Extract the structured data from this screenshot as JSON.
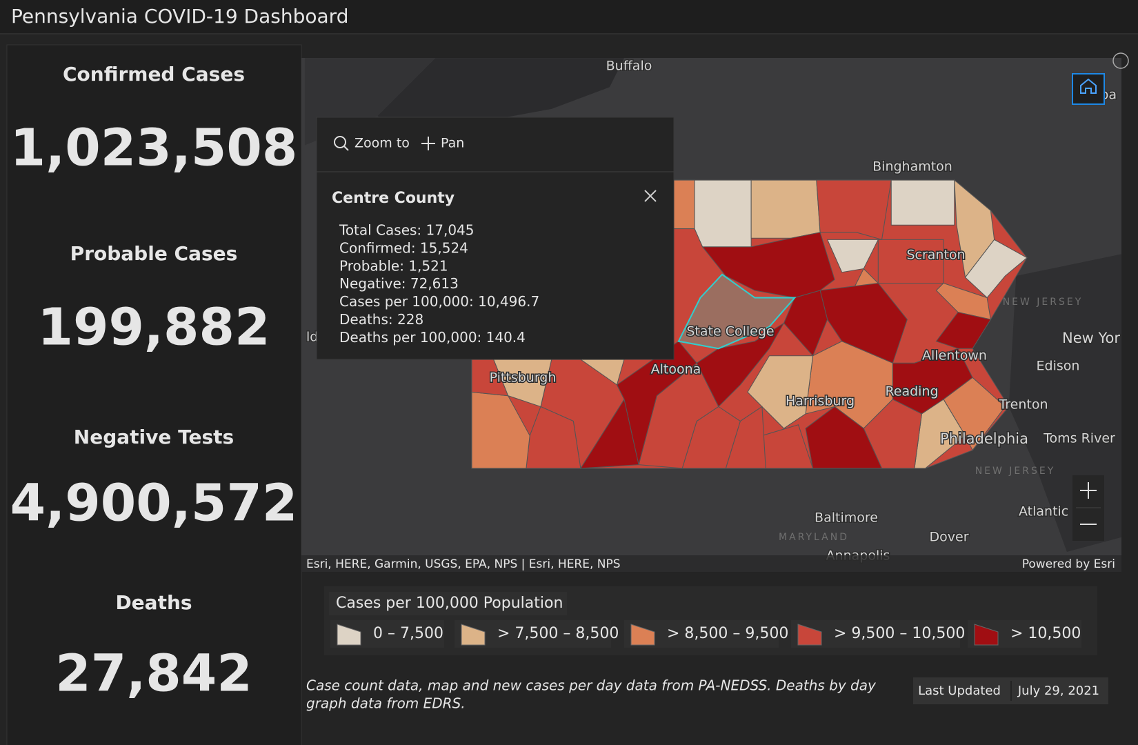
{
  "header": {
    "title": "Pennsylvania COVID-19 Dashboard"
  },
  "stats": [
    {
      "label": "Confirmed Cases",
      "value": "1,023,508",
      "color": "#ff1a1a"
    },
    {
      "label": "Probable Cases",
      "value": "199,882",
      "color": "#f7a62a"
    },
    {
      "label": "Negative Tests",
      "value": "4,900,572",
      "color": "#4dff3a"
    },
    {
      "label": "Deaths",
      "value": "27,842",
      "color": "#cfcfcf"
    }
  ],
  "map": {
    "places": [
      "Buffalo",
      "Binghamton",
      "Scranton",
      "NEW JERSEY",
      "New Yor",
      "Edison",
      "Allentown",
      "Trenton",
      "Reading",
      "Harrisburg",
      "Philadelphia",
      "Toms River",
      "State College",
      "Altoona",
      "Pittsburgh",
      "NEW JERSEY",
      "Atlantic C",
      "Baltimore",
      "MARYLAND",
      "Dover",
      "Annapolis",
      "ld",
      "lba"
    ],
    "attribution": "Esri, HERE, Garmin, USGS, EPA, NPS | Esri, HERE, NPS",
    "powered_by": "Powered by Esri"
  },
  "popup": {
    "actions": [
      "Zoom to",
      "Pan"
    ],
    "title": "Centre County",
    "fields": [
      "Total Cases: 17,045",
      "Confirmed: 15,524",
      "Probable: 1,521",
      "Negative: 72,613",
      "Cases per 100,000: 10,496.7",
      "Deaths: 228",
      "Deaths per 100,000: 140.4"
    ]
  },
  "legend": {
    "title": "Cases per 100,000 Population",
    "classes": [
      {
        "label": "0 – 7,500",
        "color": "#ddd3c5"
      },
      {
        "label": "> 7,500 – 8,500",
        "color": "#dcb388"
      },
      {
        "label": "> 8,500 – 9,500",
        "color": "#db8055"
      },
      {
        "label": "> 9,500 – 10,500",
        "color": "#c8463a"
      },
      {
        "label": "> 10,500",
        "color": "#a00e12"
      }
    ]
  },
  "footer": {
    "note": [
      "Case count data, map and new cases per day data from PA-NEDSS.  Deaths by day",
      "graph data from EDRS."
    ],
    "last_updated_label": "Last Updated",
    "last_updated": "July 29, 2021"
  }
}
